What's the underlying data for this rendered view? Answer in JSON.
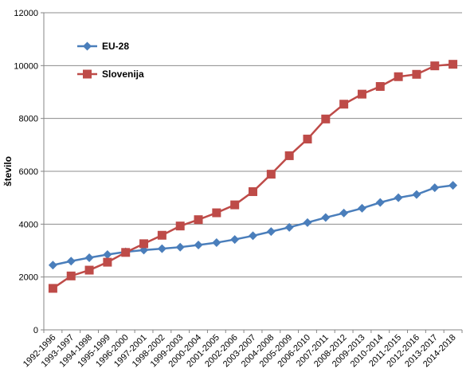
{
  "chart_data": {
    "type": "line",
    "title": "",
    "xlabel": "",
    "ylabel": "število",
    "ylim": [
      0,
      12000
    ],
    "yticks": [
      0,
      2000,
      4000,
      6000,
      8000,
      10000,
      12000
    ],
    "grid": true,
    "legend_position": "top-left",
    "categories": [
      "1992-1996",
      "1993-1997",
      "1994-1998",
      "1995-1999",
      "1996-2000",
      "1997-2001",
      "1998-2002",
      "1999-2003",
      "2000-2004",
      "2001-2005",
      "2002-2006",
      "2003-2007",
      "2004-2008",
      "2005-2009",
      "2006-2010",
      "2007-2011",
      "2008-2012",
      "2009-2013",
      "2010-2014",
      "2011-2015",
      "2012-2016",
      "2013-2017",
      "2014-2018"
    ],
    "series": [
      {
        "name": "EU-28",
        "color": "#4A7EBB",
        "marker": "diamond",
        "values": [
          2450,
          2600,
          2730,
          2850,
          2950,
          3020,
          3070,
          3130,
          3210,
          3300,
          3420,
          3560,
          3720,
          3880,
          4060,
          4250,
          4420,
          4600,
          4820,
          5000,
          5120,
          5380,
          5470
        ]
      },
      {
        "name": "Slovenija",
        "color": "#BE4B48",
        "marker": "square",
        "values": [
          1570,
          2040,
          2260,
          2560,
          2930,
          3260,
          3580,
          3930,
          4170,
          4430,
          4730,
          5230,
          5890,
          6590,
          7220,
          7980,
          8540,
          8920,
          9210,
          9580,
          9670,
          9990,
          10050
        ]
      }
    ]
  }
}
